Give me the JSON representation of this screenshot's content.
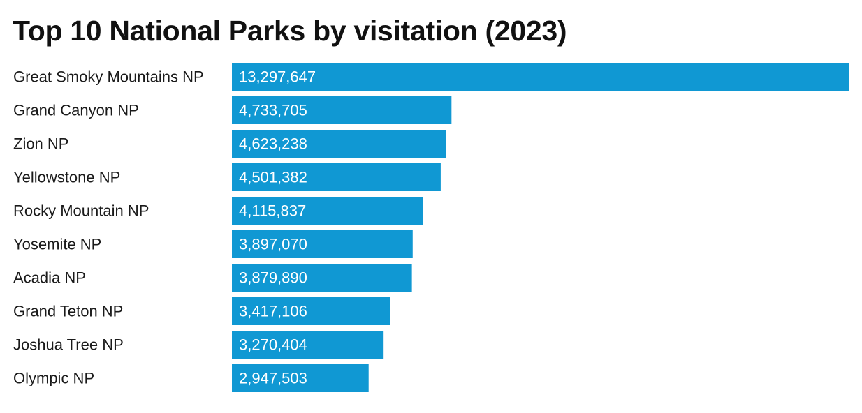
{
  "chart_data": {
    "type": "bar",
    "orientation": "horizontal",
    "title": "Top 10 National Parks by visitation (2023)",
    "xlabel": "",
    "ylabel": "",
    "grid": false,
    "legend": "none",
    "bar_color": "#1098d3",
    "categories": [
      "Great Smoky Mountains NP",
      "Grand Canyon NP",
      "Zion NP",
      "Yellowstone NP",
      "Rocky Mountain NP",
      "Yosemite NP",
      "Acadia NP",
      "Grand Teton NP",
      "Joshua Tree NP",
      "Olympic NP"
    ],
    "values": [
      13297647,
      4733705,
      4623238,
      4501382,
      4115837,
      3897070,
      3879890,
      3417106,
      3270404,
      2947503
    ],
    "value_labels": [
      "13,297,647",
      "4,733,705",
      "4,623,238",
      "4,501,382",
      "4,115,837",
      "3,897,070",
      "3,879,890",
      "3,417,106",
      "3,270,404",
      "2,947,503"
    ],
    "xlim": [
      0,
      13297647
    ]
  }
}
